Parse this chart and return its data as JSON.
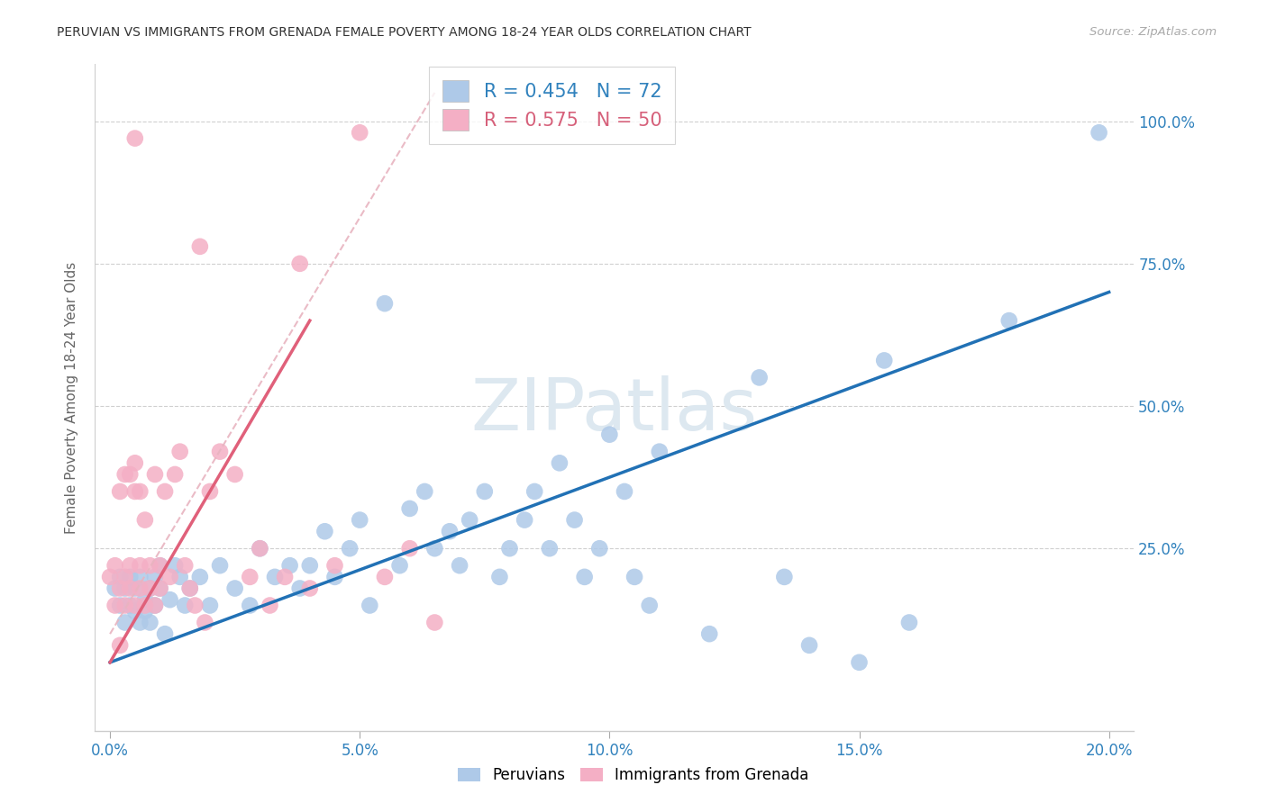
{
  "title": "PERUVIAN VS IMMIGRANTS FROM GRENADA FEMALE POVERTY AMONG 18-24 YEAR OLDS CORRELATION CHART",
  "source": "Source: ZipAtlas.com",
  "ylabel": "Female Poverty Among 18-24 Year Olds",
  "x_tick_values": [
    0.0,
    0.05,
    0.1,
    0.15,
    0.2
  ],
  "x_tick_labels": [
    "0.0%",
    "5.0%",
    "10.0%",
    "15.0%",
    "20.0%"
  ],
  "y_tick_values": [
    0.25,
    0.5,
    0.75,
    1.0
  ],
  "y_tick_labels": [
    "25.0%",
    "50.0%",
    "75.0%",
    "100.0%"
  ],
  "xlim": [
    -0.003,
    0.205
  ],
  "ylim": [
    -0.07,
    1.1
  ],
  "blue_color": "#aec9e8",
  "pink_color": "#f4afc5",
  "trend_blue_color": "#2171b5",
  "trend_pink_solid_color": "#e0607a",
  "trend_pink_dashed_color": "#e8b4c0",
  "watermark": "ZIPatlas",
  "legend_r_blue": "0.454",
  "legend_n_blue": "72",
  "legend_r_pink": "0.575",
  "legend_n_pink": "50",
  "blue_x": [
    0.001,
    0.002,
    0.002,
    0.003,
    0.003,
    0.004,
    0.004,
    0.005,
    0.005,
    0.006,
    0.006,
    0.007,
    0.007,
    0.008,
    0.008,
    0.009,
    0.009,
    0.01,
    0.01,
    0.011,
    0.012,
    0.013,
    0.014,
    0.015,
    0.016,
    0.018,
    0.02,
    0.022,
    0.025,
    0.028,
    0.03,
    0.033,
    0.036,
    0.038,
    0.04,
    0.043,
    0.045,
    0.048,
    0.05,
    0.052,
    0.055,
    0.058,
    0.06,
    0.063,
    0.065,
    0.068,
    0.07,
    0.072,
    0.075,
    0.078,
    0.08,
    0.083,
    0.085,
    0.088,
    0.09,
    0.093,
    0.095,
    0.098,
    0.1,
    0.103,
    0.105,
    0.108,
    0.11,
    0.12,
    0.13,
    0.135,
    0.14,
    0.15,
    0.155,
    0.16,
    0.18,
    0.198
  ],
  "blue_y": [
    0.18,
    0.15,
    0.2,
    0.12,
    0.18,
    0.15,
    0.2,
    0.18,
    0.14,
    0.12,
    0.2,
    0.16,
    0.14,
    0.18,
    0.12,
    0.15,
    0.2,
    0.18,
    0.22,
    0.1,
    0.16,
    0.22,
    0.2,
    0.15,
    0.18,
    0.2,
    0.15,
    0.22,
    0.18,
    0.15,
    0.25,
    0.2,
    0.22,
    0.18,
    0.22,
    0.28,
    0.2,
    0.25,
    0.3,
    0.15,
    0.68,
    0.22,
    0.32,
    0.35,
    0.25,
    0.28,
    0.22,
    0.3,
    0.35,
    0.2,
    0.25,
    0.3,
    0.35,
    0.25,
    0.4,
    0.3,
    0.2,
    0.25,
    0.45,
    0.35,
    0.2,
    0.15,
    0.42,
    0.1,
    0.55,
    0.2,
    0.08,
    0.05,
    0.58,
    0.12,
    0.65,
    0.98
  ],
  "pink_x": [
    0.0,
    0.001,
    0.001,
    0.002,
    0.002,
    0.002,
    0.003,
    0.003,
    0.003,
    0.004,
    0.004,
    0.004,
    0.005,
    0.005,
    0.005,
    0.006,
    0.006,
    0.006,
    0.007,
    0.007,
    0.008,
    0.008,
    0.009,
    0.009,
    0.01,
    0.01,
    0.011,
    0.012,
    0.013,
    0.014,
    0.015,
    0.016,
    0.017,
    0.018,
    0.019,
    0.02,
    0.022,
    0.025,
    0.028,
    0.03,
    0.032,
    0.035,
    0.038,
    0.04,
    0.045,
    0.05,
    0.055,
    0.06,
    0.065,
    0.005
  ],
  "pink_y": [
    0.2,
    0.15,
    0.22,
    0.18,
    0.35,
    0.08,
    0.2,
    0.38,
    0.15,
    0.22,
    0.18,
    0.38,
    0.15,
    0.35,
    0.4,
    0.22,
    0.18,
    0.35,
    0.15,
    0.3,
    0.22,
    0.18,
    0.38,
    0.15,
    0.22,
    0.18,
    0.35,
    0.2,
    0.38,
    0.42,
    0.22,
    0.18,
    0.15,
    0.78,
    0.12,
    0.35,
    0.42,
    0.38,
    0.2,
    0.25,
    0.15,
    0.2,
    0.75,
    0.18,
    0.22,
    0.98,
    0.2,
    0.25,
    0.12,
    0.97
  ],
  "blue_trend_x": [
    0.0,
    0.2
  ],
  "blue_trend_y": [
    0.05,
    0.7
  ],
  "pink_solid_trend_x": [
    0.0,
    0.04
  ],
  "pink_solid_trend_y": [
    0.05,
    0.65
  ],
  "pink_dashed_trend_x": [
    0.0,
    0.065
  ],
  "pink_dashed_trend_y": [
    0.1,
    1.05
  ]
}
